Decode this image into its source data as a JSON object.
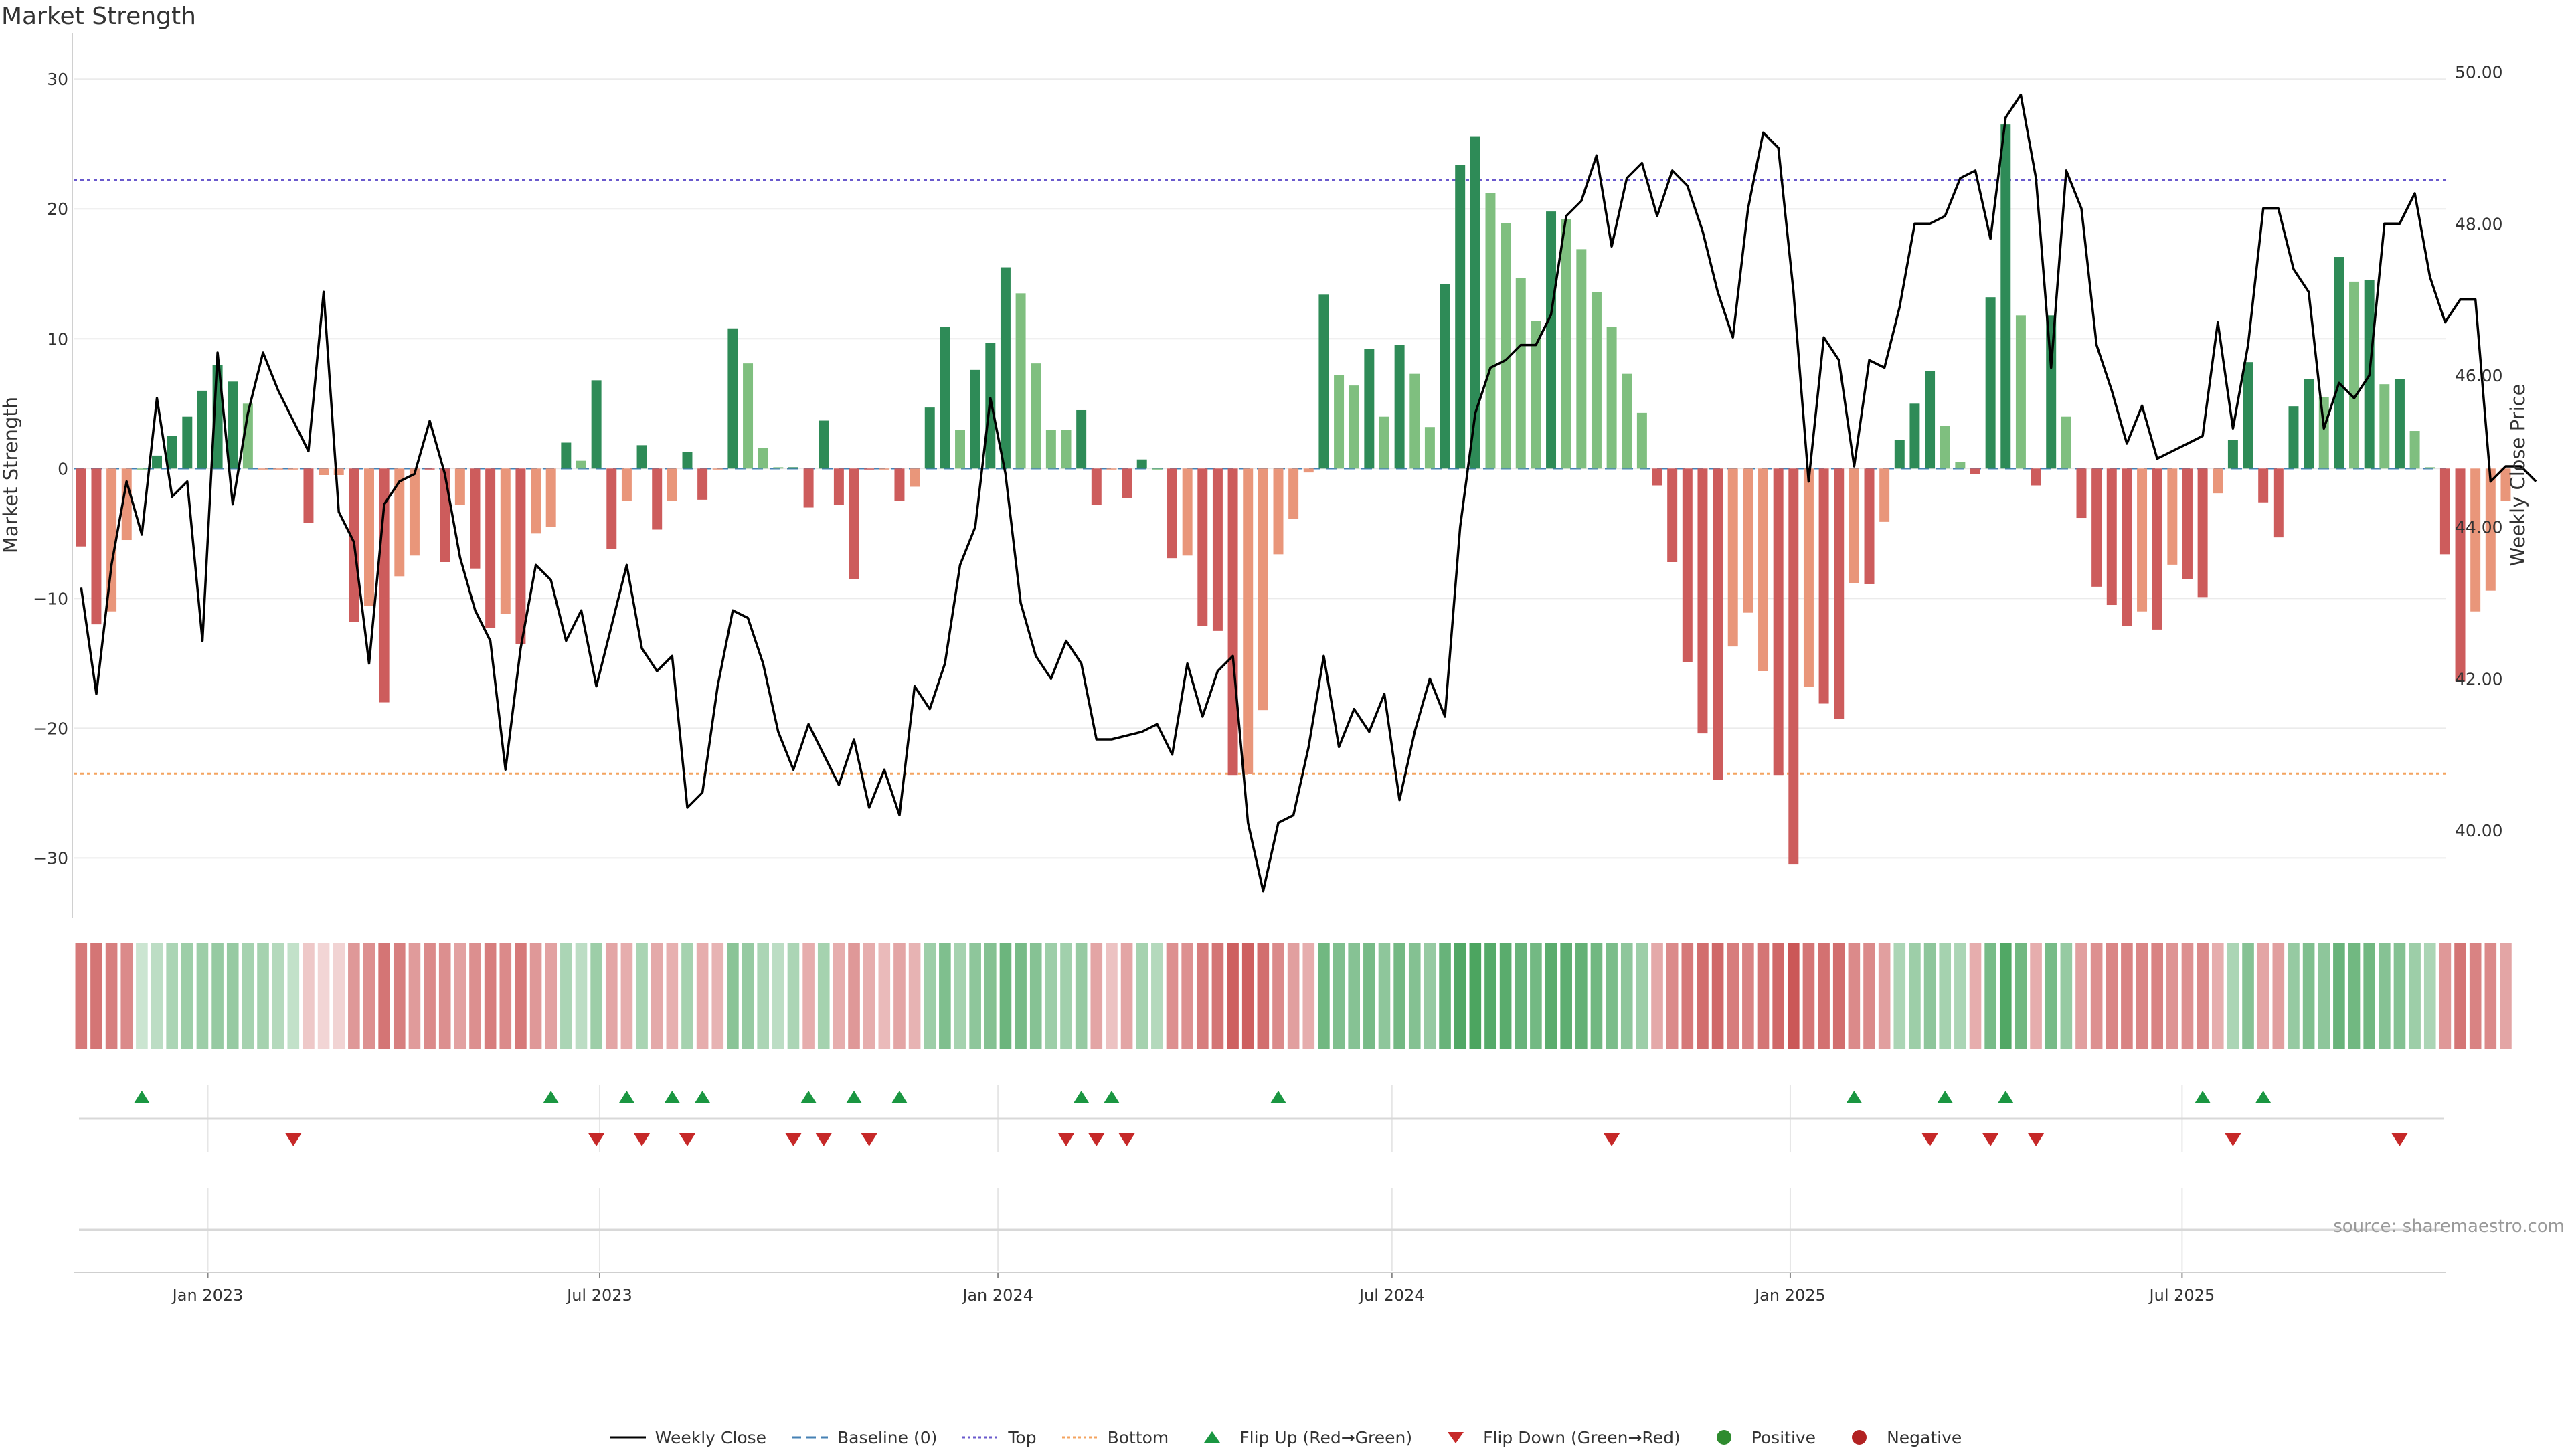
{
  "page": {
    "title": "Market Strength",
    "source": "source: sharemaestro.com"
  },
  "colors": {
    "strong_pos": "#2e8b57",
    "weak_pos": "#7fbf7f",
    "strong_neg": "#cd5c5c",
    "weak_neg": "#e9967a",
    "price_line": "#000000",
    "baseline": "#4682b4",
    "top_line": "#6a5acd",
    "bottom_line": "#f4a460",
    "flip_up": "#1a9641",
    "flip_down": "#c62828",
    "positive": "#2e8b2e",
    "negative": "#b22222"
  },
  "legend": [
    {
      "label": "Weekly Close",
      "kind": "line",
      "color": "#000000"
    },
    {
      "label": "Baseline (0)",
      "kind": "dash",
      "color": "#4682b4"
    },
    {
      "label": "Top",
      "kind": "dot",
      "color": "#6a5acd"
    },
    {
      "label": "Bottom",
      "kind": "dot",
      "color": "#f4a460"
    },
    {
      "label": "Flip Up (Red→Green)",
      "kind": "tri-up",
      "color": "#1a9641"
    },
    {
      "label": "Flip Down (Green→Red)",
      "kind": "tri-down",
      "color": "#c62828"
    },
    {
      "label": "Positive",
      "kind": "circle",
      "color": "#2e8b2e"
    },
    {
      "label": "Negative",
      "kind": "circle",
      "color": "#b22222"
    }
  ],
  "chart_data": {
    "type": "bar",
    "ylabel": "Market Strength",
    "y2label": "Weekly Close Price",
    "ylim": [
      -34,
      33
    ],
    "y2lim": [
      38.95,
      50.42
    ],
    "yticks": [
      -30,
      -20,
      -10,
      0,
      10,
      20,
      30
    ],
    "y2ticks": [
      40,
      42,
      44,
      46,
      48,
      50
    ],
    "y2ticklabels": [
      "40.00",
      "42.00",
      "44.00",
      "46.00",
      "48.00",
      "50.00"
    ],
    "top_level": 22.2,
    "bottom_level": -23.5,
    "x_start": "2022-10-31",
    "x_end": "2025-10-31",
    "xticks": [
      {
        "date": "2023-01-01",
        "label": "Jan 2023"
      },
      {
        "date": "2023-07-01",
        "label": "Jul 2023"
      },
      {
        "date": "2024-01-01",
        "label": "Jan 2024"
      },
      {
        "date": "2024-07-01",
        "label": "Jul 2024"
      },
      {
        "date": "2025-01-01",
        "label": "Jan 2025"
      },
      {
        "date": "2025-07-01",
        "label": "Jul 2025"
      }
    ],
    "grid": true,
    "legend_position": "bottom",
    "series": [
      {
        "name": "Market Strength",
        "values": [
          -6,
          -12,
          -11,
          -5.5,
          0,
          1,
          2.5,
          4,
          6,
          8,
          6.7,
          5,
          0,
          0,
          0,
          -4.2,
          -0.5,
          -0.5,
          -11.8,
          -10.6,
          -18,
          -8.3,
          -6.7,
          0,
          -7.2,
          -2.8,
          -7.7,
          -12.3,
          -11.2,
          -13.5,
          -5,
          -4.5,
          2,
          0.6,
          6.8,
          -6.2,
          -2.5,
          1.8,
          -4.7,
          -2.5,
          1.3,
          -2.4,
          0,
          10.8,
          8.1,
          1.6,
          0.1,
          0.1,
          -3,
          3.7,
          -2.8,
          -8.5,
          0,
          0,
          -2.5,
          -1.4,
          4.7,
          10.9,
          3,
          7.6,
          9.7,
          15.5,
          13.5,
          8.1,
          3,
          3,
          4.5,
          -2.8,
          0,
          -2.3,
          0.7,
          0,
          -6.9,
          -6.7,
          -12.1,
          -12.5,
          -23.6,
          -23.5,
          -18.6,
          -6.6,
          -3.9,
          -0.3,
          13.4,
          7.2,
          6.4,
          9.2,
          4,
          9.5,
          7.3,
          3.2,
          14.2,
          23.4,
          25.6,
          21.2,
          18.9,
          14.7,
          11.4,
          19.8,
          19.2,
          16.9,
          13.6,
          10.9,
          7.3,
          4.3,
          -1.3,
          -7.2,
          -14.9,
          -20.4,
          -24,
          -13.7,
          -11.1,
          -15.6,
          -23.6,
          -30.5,
          -16.8,
          -18.1,
          -19.3,
          -8.8,
          -8.9,
          -4.1,
          2.2,
          5,
          7.5,
          3.3,
          0.5,
          -0.4,
          13.2,
          26.5,
          11.8,
          -1.3,
          11.8,
          4,
          -3.8,
          -9.1,
          -10.5,
          -12.1,
          -11,
          -12.4,
          -7.4,
          -8.5,
          -9.9,
          -1.9,
          2.2,
          8.2,
          -2.6,
          -5.3,
          4.8,
          6.9,
          5.5,
          16.3,
          14.4,
          14.5,
          6.5,
          6.9,
          2.9,
          0.1,
          -6.6,
          -16.4,
          -11,
          -9.4,
          -2.5
        ],
        "colors": [
          "strong_neg",
          "strong_neg",
          "weak_neg",
          "weak_neg",
          "weak_pos",
          "strong_pos",
          "strong_pos",
          "strong_pos",
          "strong_pos",
          "strong_pos",
          "strong_pos",
          "weak_pos",
          "weak_neg",
          "weak_neg",
          "weak_neg",
          "strong_neg",
          "weak_neg",
          "weak_neg",
          "strong_neg",
          "weak_neg",
          "strong_neg",
          "weak_neg",
          "weak_neg",
          "strong_neg",
          "strong_neg",
          "weak_neg",
          "strong_neg",
          "strong_neg",
          "weak_neg",
          "strong_neg",
          "weak_neg",
          "weak_neg",
          "strong_pos",
          "weak_pos",
          "strong_pos",
          "strong_neg",
          "weak_neg",
          "strong_pos",
          "strong_neg",
          "weak_neg",
          "strong_pos",
          "strong_neg",
          "weak_neg",
          "strong_pos",
          "weak_pos",
          "weak_pos",
          "weak_pos",
          "strong_pos",
          "strong_neg",
          "strong_pos",
          "strong_neg",
          "strong_neg",
          "strong_neg",
          "weak_neg",
          "strong_neg",
          "weak_neg",
          "strong_pos",
          "strong_pos",
          "weak_pos",
          "strong_pos",
          "strong_pos",
          "strong_pos",
          "weak_pos",
          "weak_pos",
          "weak_pos",
          "weak_pos",
          "strong_pos",
          "strong_neg",
          "weak_neg",
          "strong_neg",
          "strong_pos",
          "weak_pos",
          "strong_neg",
          "weak_neg",
          "strong_neg",
          "strong_neg",
          "strong_neg",
          "weak_neg",
          "weak_neg",
          "weak_neg",
          "weak_neg",
          "weak_neg",
          "strong_pos",
          "weak_pos",
          "weak_pos",
          "strong_pos",
          "weak_pos",
          "strong_pos",
          "weak_pos",
          "weak_pos",
          "strong_pos",
          "strong_pos",
          "strong_pos",
          "weak_pos",
          "weak_pos",
          "weak_pos",
          "weak_pos",
          "strong_pos",
          "weak_pos",
          "weak_pos",
          "weak_pos",
          "weak_pos",
          "weak_pos",
          "weak_pos",
          "strong_neg",
          "strong_neg",
          "strong_neg",
          "strong_neg",
          "strong_neg",
          "weak_neg",
          "weak_neg",
          "weak_neg",
          "strong_neg",
          "strong_neg",
          "weak_neg",
          "strong_neg",
          "strong_neg",
          "weak_neg",
          "strong_neg",
          "weak_neg",
          "strong_pos",
          "strong_pos",
          "strong_pos",
          "weak_pos",
          "weak_pos",
          "strong_neg",
          "strong_pos",
          "strong_pos",
          "weak_pos",
          "strong_neg",
          "strong_pos",
          "weak_pos",
          "strong_neg",
          "strong_neg",
          "strong_neg",
          "strong_neg",
          "weak_neg",
          "strong_neg",
          "weak_neg",
          "strong_neg",
          "strong_neg",
          "weak_neg",
          "strong_pos",
          "strong_pos",
          "strong_neg",
          "strong_neg",
          "strong_pos",
          "strong_pos",
          "weak_pos",
          "strong_pos",
          "weak_pos",
          "strong_pos",
          "weak_pos",
          "strong_pos",
          "weak_pos",
          "weak_pos",
          "strong_neg",
          "strong_neg",
          "weak_neg",
          "weak_neg",
          "weak_neg"
        ]
      },
      {
        "name": "Weekly Close",
        "axis": "right",
        "values": [
          43.2,
          41.8,
          43.5,
          44.6,
          43.9,
          45.7,
          44.4,
          44.6,
          42.5,
          46.3,
          44.3,
          45.5,
          46.3,
          45.8,
          45.4,
          45,
          47.1,
          44.2,
          43.8,
          42.2,
          44.3,
          44.6,
          44.7,
          45.4,
          44.7,
          43.6,
          42.9,
          42.5,
          40.8,
          42.4,
          43.5,
          43.3,
          42.5,
          42.9,
          41.9,
          42.7,
          43.5,
          42.4,
          42.1,
          42.3,
          40.3,
          40.5,
          41.9,
          42.9,
          42.8,
          42.2,
          41.3,
          40.8,
          41.4,
          41,
          40.6,
          41.2,
          40.3,
          40.8,
          40.2,
          41.9,
          41.6,
          42.2,
          43.5,
          44,
          45.7,
          44.7,
          43,
          42.3,
          42,
          42.5,
          42.2,
          41.2,
          41.2,
          41.25,
          41.3,
          41.4,
          41,
          42.2,
          41.5,
          42.1,
          42.3,
          40.1,
          39.2,
          40.1,
          40.2,
          41.1,
          42.3,
          41.1,
          41.6,
          41.3,
          41.8,
          40.4,
          41.3,
          42,
          41.5,
          44,
          45.5,
          46.1,
          46.2,
          46.4,
          46.4,
          46.8,
          48.1,
          48.3,
          48.9,
          47.7,
          48.6,
          48.8,
          48.1,
          48.7,
          48.5,
          47.9,
          47.1,
          46.5,
          48.2,
          49.2,
          49.0,
          47.1,
          44.6,
          46.5,
          46.2,
          44.8,
          46.2,
          46.1,
          46.9,
          48.0,
          48.0,
          48.1,
          48.6,
          48.7,
          47.8,
          49.4,
          49.7,
          48.6,
          46.1,
          48.7,
          48.2,
          46.4,
          45.8,
          45.1,
          45.6,
          44.9,
          45.0,
          45.1,
          45.2,
          46.7,
          45.3,
          46.4,
          48.2,
          48.2,
          47.4,
          47.1,
          45.3,
          45.9,
          45.7,
          46.0,
          48.0,
          48.0,
          48.4,
          47.3,
          46.7,
          47.0,
          47.0,
          44.6,
          44.8,
          44.8,
          44.6
        ],
        "color": "#000000"
      }
    ],
    "heat_strip": [
      -2.9,
      -3,
      -2.7,
      -2.4,
      0.4,
      0.8,
      1.2,
      1.6,
      1.6,
      1.8,
      1.8,
      1.4,
      1.4,
      1.0,
      0.6,
      -0.6,
      -0.2,
      -0.3,
      -2,
      -2.2,
      -3,
      -2.7,
      -1.9,
      -2.4,
      -2.3,
      -1.7,
      -2.3,
      -2.8,
      -2.4,
      -2.9,
      -2,
      -1.7,
      1.2,
      0.8,
      1.6,
      -1.6,
      -1.4,
      1.3,
      -1.5,
      -1.3,
      1.4,
      -1.4,
      -1.2,
      2.1,
      1.8,
      1.2,
      0.8,
      1.2,
      -1.4,
      1.4,
      -1.4,
      -2.0,
      -1.4,
      -1.0,
      -1.6,
      -1.2,
      1.6,
      2.4,
      1.4,
      2.0,
      2.3,
      2.9,
      2.6,
      2.2,
      1.6,
      1.5,
      1.8,
      -1.6,
      -0.8,
      -1.6,
      1.4,
      1.0,
      -2.2,
      -2.2,
      -2.8,
      -3.0,
      -3.6,
      -3.6,
      -3.2,
      -2.4,
      -1.8,
      -1.4,
      2.8,
      2.4,
      2.2,
      2.6,
      2.0,
      2.7,
      2.3,
      1.8,
      3.0,
      3.6,
      3.8,
      3.5,
      3.4,
      3.0,
      2.7,
      3.4,
      3.3,
      3.1,
      2.8,
      2.5,
      2.0,
      1.6,
      -1.5,
      -2.4,
      -2.9,
      -3.2,
      -3.4,
      -2.8,
      -2.6,
      -3.0,
      -3.4,
      -3.9,
      -3.0,
      -3.1,
      -3.2,
      -2.4,
      -2.4,
      -1.8,
      1.2,
      1.6,
      2.0,
      1.4,
      1.2,
      -1.4,
      2.6,
      3.6,
      2.8,
      -1.4,
      2.6,
      1.8,
      -1.8,
      -2.2,
      -2.5,
      -2.6,
      -2.5,
      -2.6,
      -2.1,
      -2.2,
      -2.4,
      -1.4,
      1.2,
      2.2,
      -1.6,
      -1.8,
      1.8,
      2.4,
      2.0,
      3.0,
      2.8,
      2.8,
      2.2,
      2.3,
      1.6,
      1.2,
      -2.0,
      -3.0,
      -2.6,
      -2.4,
      -1.6
    ],
    "flip_up_weeks": [
      4,
      31,
      36,
      39,
      41,
      48,
      51,
      54,
      66,
      68,
      79,
      117,
      123,
      127,
      140,
      144
    ],
    "flip_down_weeks": [
      14,
      34,
      37,
      40,
      47,
      49,
      52,
      65,
      67,
      69,
      101,
      122,
      126,
      129,
      142,
      153
    ]
  }
}
